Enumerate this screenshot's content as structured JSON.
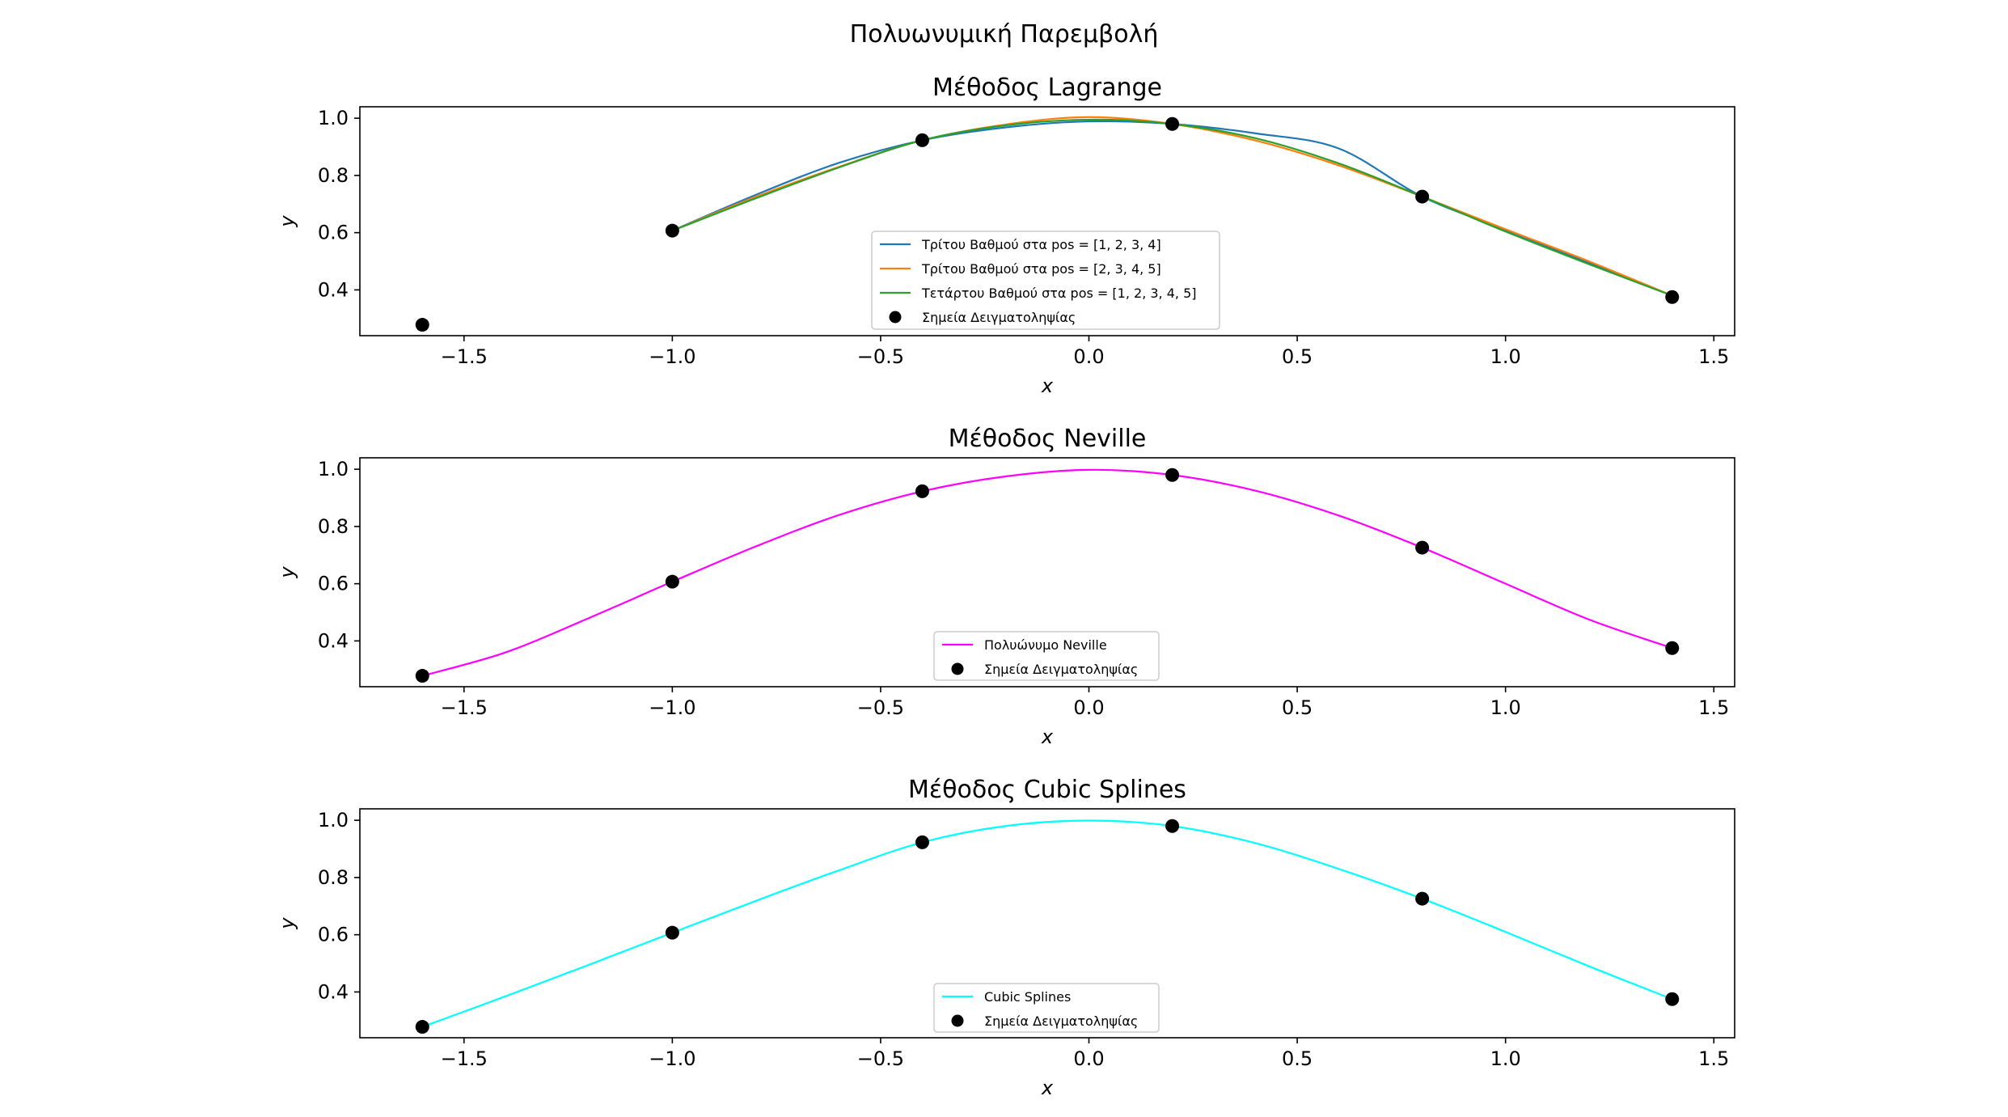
{
  "figure": {
    "suptitle": "Πολυωνυμική Παρεμβολή"
  },
  "chart_data": [
    {
      "type": "line",
      "title": "Μέθοδος Lagrange",
      "xlabel": "x",
      "ylabel": "y",
      "xlim": [
        -1.75,
        1.55
      ],
      "ylim": [
        0.24,
        1.04
      ],
      "xticks": [
        -1.5,
        -1.0,
        -0.5,
        0.0,
        0.5,
        1.0,
        1.5
      ],
      "xtick_labels": [
        "−1.5",
        "−1.0",
        "−0.5",
        "0.0",
        "0.5",
        "1.0",
        "1.5"
      ],
      "yticks": [
        0.4,
        0.6,
        0.8,
        1.0
      ],
      "ytick_labels": [
        "0.4",
        "0.6",
        "0.8",
        "1.0"
      ],
      "legend_position": "lower-center",
      "series": [
        {
          "name": "Τρίτου Βαθμού στα pos = [1, 2, 3, 4]",
          "color": "#1f77b4",
          "x": [
            -1.0,
            -0.8,
            -0.6,
            -0.4,
            -0.2,
            0.0,
            0.2,
            0.4,
            0.6,
            0.8,
            1.0,
            1.2,
            1.4
          ],
          "y": [
            0.607,
            0.732,
            0.844,
            0.923,
            0.968,
            0.989,
            0.98,
            0.947,
            0.894,
            0.726,
            0.61,
            0.495,
            0.38
          ]
        },
        {
          "name": "Τρίτου Βαθμού στα pos = [2, 3, 4, 5]",
          "color": "#ff7f0e",
          "x": [
            -1.0,
            -0.8,
            -0.6,
            -0.4,
            -0.2,
            0.0,
            0.2,
            0.4,
            0.6,
            0.8,
            1.0,
            1.2,
            1.4
          ],
          "y": [
            0.607,
            0.725,
            0.83,
            0.923,
            0.978,
            1.004,
            0.98,
            0.922,
            0.835,
            0.726,
            0.612,
            0.5,
            0.38
          ]
        },
        {
          "name": "Τετάρτου Βαθμού στα pos = [1, 2, 3, 4, 5]",
          "color": "#2ca02c",
          "x": [
            -1.0,
            -0.8,
            -0.6,
            -0.4,
            -0.2,
            0.0,
            0.2,
            0.4,
            0.6,
            0.8,
            1.0,
            1.2,
            1.4
          ],
          "y": [
            0.607,
            0.72,
            0.828,
            0.923,
            0.975,
            0.995,
            0.98,
            0.93,
            0.842,
            0.726,
            0.604,
            0.49,
            0.38
          ]
        }
      ],
      "points": {
        "name": "Σημεία Δειγματοληψίας",
        "color": "#000000",
        "x": [
          -1.6,
          -1.0,
          -0.4,
          0.2,
          0.8,
          1.4
        ],
        "y": [
          0.278,
          0.607,
          0.923,
          0.98,
          0.726,
          0.375
        ]
      }
    },
    {
      "type": "line",
      "title": "Μέθοδος Neville",
      "xlabel": "x",
      "ylabel": "y",
      "xlim": [
        -1.75,
        1.55
      ],
      "ylim": [
        0.24,
        1.04
      ],
      "xticks": [
        -1.5,
        -1.0,
        -0.5,
        0.0,
        0.5,
        1.0,
        1.5
      ],
      "xtick_labels": [
        "−1.5",
        "−1.0",
        "−0.5",
        "0.0",
        "0.5",
        "1.0",
        "1.5"
      ],
      "yticks": [
        0.4,
        0.6,
        0.8,
        1.0
      ],
      "ytick_labels": [
        "0.4",
        "0.6",
        "0.8",
        "1.0"
      ],
      "legend_position": "lower-center",
      "series": [
        {
          "name": "Πολυώνυμο Neville",
          "color": "#ff00ff",
          "x": [
            -1.6,
            -1.4,
            -1.2,
            -1.0,
            -0.8,
            -0.6,
            -0.4,
            -0.2,
            0.0,
            0.2,
            0.4,
            0.6,
            0.8,
            1.0,
            1.2,
            1.4
          ],
          "y": [
            0.278,
            0.36,
            0.48,
            0.607,
            0.73,
            0.84,
            0.923,
            0.975,
            0.998,
            0.98,
            0.925,
            0.838,
            0.726,
            0.6,
            0.475,
            0.375
          ]
        }
      ],
      "points": {
        "name": "Σημεία Δειγματοληψίας",
        "color": "#000000",
        "x": [
          -1.6,
          -1.0,
          -0.4,
          0.2,
          0.8,
          1.4
        ],
        "y": [
          0.278,
          0.607,
          0.923,
          0.98,
          0.726,
          0.375
        ]
      }
    },
    {
      "type": "line",
      "title": "Μέθοδος Cubic Splines",
      "xlabel": "x",
      "ylabel": "y",
      "xlim": [
        -1.75,
        1.55
      ],
      "ylim": [
        0.24,
        1.04
      ],
      "xticks": [
        -1.5,
        -1.0,
        -0.5,
        0.0,
        0.5,
        1.0,
        1.5
      ],
      "xtick_labels": [
        "−1.5",
        "−1.0",
        "−0.5",
        "0.0",
        "0.5",
        "1.0",
        "1.5"
      ],
      "yticks": [
        0.4,
        0.6,
        0.8,
        1.0
      ],
      "ytick_labels": [
        "0.4",
        "0.6",
        "0.8",
        "1.0"
      ],
      "legend_position": "lower-center",
      "series": [
        {
          "name": "Cubic Splines",
          "color": "#00ffff",
          "x": [
            -1.6,
            -1.4,
            -1.2,
            -1.0,
            -0.8,
            -0.6,
            -0.4,
            -0.2,
            0.0,
            0.2,
            0.4,
            0.6,
            0.8,
            1.0,
            1.2,
            1.4
          ],
          "y": [
            0.278,
            0.385,
            0.495,
            0.607,
            0.718,
            0.825,
            0.923,
            0.98,
            0.999,
            0.98,
            0.92,
            0.83,
            0.726,
            0.61,
            0.49,
            0.375
          ]
        }
      ],
      "points": {
        "name": "Σημεία Δειγματοληψίας",
        "color": "#000000",
        "x": [
          -1.6,
          -1.0,
          -0.4,
          0.2,
          0.8,
          1.4
        ],
        "y": [
          0.278,
          0.607,
          0.923,
          0.98,
          0.726,
          0.375
        ]
      }
    }
  ]
}
